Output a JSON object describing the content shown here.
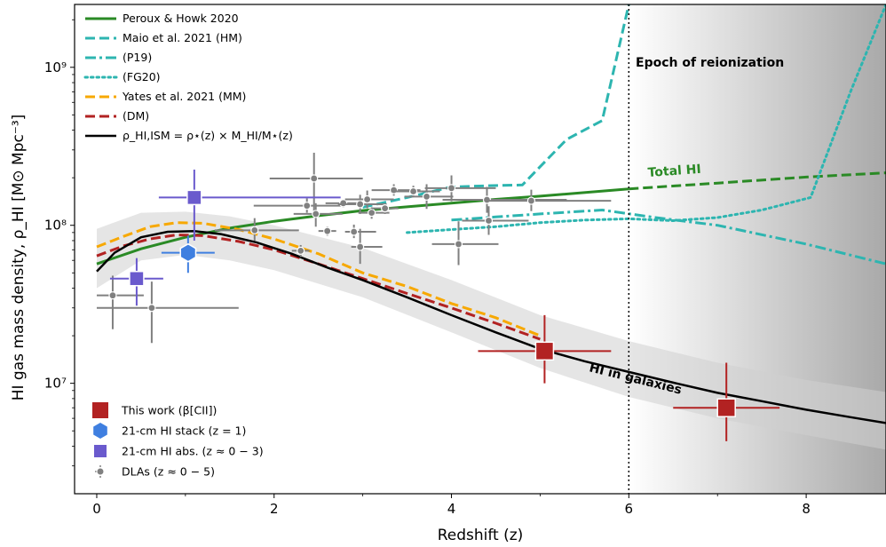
{
  "chart_data": {
    "type": "line",
    "xlabel": "Redshift (z)",
    "ylabel": "HI gas mass density, ρ_HI [M⊙ Mpc⁻³]",
    "xlim": [
      -0.25,
      8.9
    ],
    "ylim": [
      2000000,
      2500000000
    ],
    "yscale": "log",
    "grid": false,
    "legend_position": "top-left",
    "x_ticks": [
      0,
      2,
      4,
      6,
      8
    ],
    "x_tick_labels": [
      "0",
      "2",
      "4",
      "6",
      "8"
    ],
    "y_ticks": [
      10000000,
      100000000,
      1000000000
    ],
    "y_tick_labels": [
      "10⁷",
      "10⁸",
      "10⁹"
    ],
    "annotations": {
      "reionization": "Epoch of reionization",
      "total_hi": "Total HI",
      "hi_in_galaxies": "HI in galaxies"
    },
    "reionization_z": 6,
    "band": {
      "name": "ρ_HI,ISM uncertainty",
      "x": [
        0,
        0.5,
        1,
        1.5,
        2,
        3,
        4,
        5,
        6,
        7,
        8,
        8.9
      ],
      "upper": [
        95000000,
        120000000,
        122000000,
        114000000,
        100000000,
        72000000,
        45000000,
        27000000,
        18500000,
        13500000,
        10500000,
        8800000
      ],
      "lower": [
        40000000,
        60000000,
        65000000,
        60000000,
        52000000,
        35000000,
        21000000,
        12500000,
        8200000,
        6000000,
        4700000,
        3800000
      ]
    },
    "series": [
      {
        "name": "Peroux & Howk 2020",
        "color": "#2a8a25",
        "style": "solid",
        "x": [
          0,
          0.5,
          1,
          1.5,
          2,
          2.5,
          3,
          3.5,
          4,
          4.5,
          5,
          6
        ],
        "values": [
          57000000,
          71000000,
          84000000,
          96000000,
          106000000,
          115000000,
          124000000,
          131000000,
          138000000,
          146000000,
          153000000,
          170000000
        ]
      },
      {
        "name": "Peroux & Howk 2020 (extrapolation)",
        "color": "#2a8a25",
        "style": "dashed",
        "x": [
          6,
          7,
          8,
          8.9
        ],
        "values": [
          170000000,
          185000000,
          202000000,
          215000000
        ]
      },
      {
        "name": "Maio et al. 2021 (HM)",
        "color": "#2db5b0",
        "style": "dashed",
        "x": [
          3.0,
          3.5,
          4.0,
          4.4,
          4.8,
          5.3,
          5.7,
          6.0
        ],
        "values": [
          130000000,
          150000000,
          175000000,
          178000000,
          180000000,
          350000000,
          460000000,
          2500000000
        ]
      },
      {
        "name": "(P19)",
        "color": "#2db5b0",
        "style": "dashdot",
        "x": [
          4.0,
          4.5,
          5.0,
          5.7,
          6.3,
          7.0,
          8.0,
          8.9
        ],
        "values": [
          108000000,
          113000000,
          118000000,
          125000000,
          112000000,
          100000000,
          76000000,
          57000000
        ]
      },
      {
        "name": "(FG20)",
        "color": "#2db5b0",
        "style": "dotted",
        "x": [
          3.5,
          4.0,
          4.5,
          5.0,
          5.5,
          6.0,
          6.5,
          7.0,
          7.5,
          8.05,
          8.5,
          8.9
        ],
        "values": [
          90000000,
          94000000,
          98000000,
          104000000,
          108000000,
          110000000,
          107000000,
          112000000,
          125000000,
          150000000,
          700000000,
          2500000000
        ]
      },
      {
        "name": "Yates et al. 2021 (MM)",
        "color": "#f7a800",
        "style": "dashed",
        "x": [
          0,
          0.3,
          0.6,
          0.9,
          1.2,
          1.6,
          2,
          2.5,
          3,
          3.5,
          4,
          4.5,
          5.0
        ],
        "values": [
          73000000,
          85000000,
          98000000,
          104000000,
          103000000,
          94000000,
          82000000,
          66000000,
          50000000,
          41000000,
          32000000,
          26000000,
          20000000
        ]
      },
      {
        "name": "(DM)",
        "color": "#b22222",
        "style": "dashed",
        "x": [
          0,
          0.3,
          0.6,
          0.9,
          1.2,
          1.6,
          2,
          2.5,
          3,
          3.5,
          4,
          4.5,
          5.0
        ],
        "values": [
          64000000,
          74000000,
          82000000,
          87000000,
          86000000,
          79000000,
          70000000,
          57000000,
          46000000,
          37000000,
          30000000,
          24000000,
          19000000
        ]
      },
      {
        "name": "ρ_HI,ISM = ρ⋆(z) × M_HI/M⋆(z)",
        "color": "#000000",
        "style": "solid",
        "x": [
          0,
          0.2,
          0.5,
          0.8,
          1.1,
          1.4,
          1.8,
          2.2,
          2.6,
          3,
          3.5,
          4,
          4.5,
          5,
          5.5,
          6,
          6.5,
          7,
          7.5,
          8,
          8.5,
          8.9
        ],
        "values": [
          51000000,
          67000000,
          84000000,
          91000000,
          92000000,
          88000000,
          78000000,
          66000000,
          54000000,
          45000000,
          35000000,
          27000000,
          21000000,
          16500000,
          13800000,
          11800000,
          10100000,
          8700000,
          7700000,
          6800000,
          6100000,
          5600000
        ]
      }
    ],
    "points": {
      "this_work": {
        "name": "This work (β[CII])",
        "color": "#b22222",
        "data": [
          {
            "x": 5.05,
            "y": 16000000,
            "xerr": [
              0.75,
              0.75
            ],
            "yerr": [
              6000000,
              11000000
            ]
          },
          {
            "x": 7.1,
            "y": 7000000,
            "xerr": [
              0.6,
              0.6
            ],
            "yerr": [
              2700000,
              6500000
            ]
          }
        ]
      },
      "stack": {
        "name": "21-cm HI stack (z = 1)",
        "color": "#3f7fe0",
        "data": [
          {
            "x": 1.03,
            "y": 67000000,
            "xerr": [
              0.3,
              0.3
            ],
            "yerr": [
              17000000,
              19000000
            ]
          }
        ]
      },
      "abs": {
        "name": "21-cm HI abs. (z ≈ 0 − 3)",
        "color": "#6a5acd",
        "data": [
          {
            "x": 0.45,
            "y": 46000000,
            "xerr": [
              0.3,
              0.3
            ],
            "yerr": [
              15000000,
              16000000
            ]
          },
          {
            "x": 1.1,
            "y": 150000000,
            "xerr": [
              0.4,
              1.65
            ],
            "yerr": [
              70000000,
              75000000
            ]
          }
        ]
      },
      "dla": {
        "name": "DLAs (z ≈ 0 − 5)",
        "color": "#808080",
        "data": [
          {
            "x": 0.18,
            "y": 36000000,
            "xerr": [
              0.18,
              0.35
            ],
            "yerr": [
              14000000,
              12000000
            ]
          },
          {
            "x": 0.62,
            "y": 30000000,
            "xerr": [
              0.62,
              0.98
            ],
            "yerr": [
              12000000,
              14000000
            ]
          },
          {
            "x": 1.78,
            "y": 93000000,
            "xerr": [
              0.45,
              0.5
            ],
            "yerr": [
              13000000,
              18000000
            ]
          },
          {
            "x": 2.3,
            "y": 69000000,
            "xerr": [
              0.1,
              0.1
            ],
            "yerr": [
              6000000,
              6000000
            ]
          },
          {
            "x": 2.37,
            "y": 133000000,
            "xerr": [
              0.6,
              0.4
            ],
            "yerr": [
              13000000,
              15000000
            ]
          },
          {
            "x": 2.45,
            "y": 198000000,
            "xerr": [
              0.5,
              0.55
            ],
            "yerr": [
              80000000,
              90000000
            ]
          },
          {
            "x": 2.47,
            "y": 118000000,
            "xerr": [
              0.25,
              0.3
            ],
            "yerr": [
              20000000,
              20000000
            ]
          },
          {
            "x": 2.6,
            "y": 92000000,
            "xerr": [
              0.1,
              0.1
            ],
            "yerr": [
              6000000,
              6000000
            ]
          },
          {
            "x": 2.78,
            "y": 138000000,
            "xerr": [
              0.2,
              0.2
            ],
            "yerr": [
              8000000,
              8000000
            ]
          },
          {
            "x": 2.9,
            "y": 91000000,
            "xerr": [
              0.1,
              0.25
            ],
            "yerr": [
              8000000,
              10000000
            ]
          },
          {
            "x": 2.97,
            "y": 136000000,
            "xerr": [
              0.25,
              0.3
            ],
            "yerr": [
              18000000,
              20000000
            ]
          },
          {
            "x": 2.97,
            "y": 73000000,
            "xerr": [
              0.1,
              0.25
            ],
            "yerr": [
              16000000,
              22000000
            ]
          },
          {
            "x": 3.05,
            "y": 146000000,
            "xerr": [
              0.25,
              0.3
            ],
            "yerr": [
              18000000,
              20000000
            ]
          },
          {
            "x": 3.1,
            "y": 120000000,
            "xerr": [
              0.15,
              0.2
            ],
            "yerr": [
              10000000,
              10000000
            ]
          },
          {
            "x": 3.25,
            "y": 128000000,
            "xerr": [
              0.15,
              0.15
            ],
            "yerr": [
              10000000,
              10000000
            ]
          },
          {
            "x": 3.35,
            "y": 167000000,
            "xerr": [
              0.25,
              0.3
            ],
            "yerr": [
              13000000,
              15000000
            ]
          },
          {
            "x": 3.57,
            "y": 164000000,
            "xerr": [
              0.25,
              0.3
            ],
            "yerr": [
              12000000,
              14000000
            ]
          },
          {
            "x": 3.72,
            "y": 152000000,
            "xerr": [
              0.25,
              0.3
            ],
            "yerr": [
              25000000,
              30000000
            ]
          },
          {
            "x": 4.0,
            "y": 172000000,
            "xerr": [
              0.3,
              0.5
            ],
            "yerr": [
              30000000,
              35000000
            ]
          },
          {
            "x": 4.08,
            "y": 76000000,
            "xerr": [
              0.3,
              0.45
            ],
            "yerr": [
              20000000,
              30000000
            ]
          },
          {
            "x": 4.4,
            "y": 145000000,
            "xerr": [
              0.5,
              0.9
            ],
            "yerr": [
              25000000,
              30000000
            ]
          },
          {
            "x": 4.42,
            "y": 107000000,
            "xerr": [
              0.3,
              0.45
            ],
            "yerr": [
              20000000,
              25000000
            ]
          },
          {
            "x": 4.9,
            "y": 143000000,
            "xerr": [
              0.5,
              0.9
            ],
            "yerr": [
              20000000,
              25000000
            ]
          }
        ]
      }
    },
    "legend_lines": [
      {
        "label": "Peroux & Howk 2020",
        "color": "#2a8a25",
        "style": "solid"
      },
      {
        "label": "Maio et al. 2021 (HM)",
        "color": "#2db5b0",
        "style": "dashed"
      },
      {
        "label": "(P19)",
        "color": "#2db5b0",
        "style": "dashdot"
      },
      {
        "label": "(FG20)",
        "color": "#2db5b0",
        "style": "dotted"
      },
      {
        "label": "Yates et al. 2021 (MM)",
        "color": "#f7a800",
        "style": "dashed"
      },
      {
        "label": "(DM)",
        "color": "#b22222",
        "style": "dashed"
      },
      {
        "label": "ρ_HI,ISM = ρ⋆(z) × M_HI/M⋆(z)",
        "color": "#000000",
        "style": "solid"
      }
    ],
    "legend_points": [
      {
        "label": "This work (β[CII])",
        "color": "#b22222",
        "marker": "square"
      },
      {
        "label": "21-cm HI stack (z = 1)",
        "color": "#3f7fe0",
        "marker": "hexagon"
      },
      {
        "label": "21-cm HI abs. (z ≈ 0 − 3)",
        "color": "#6a5acd",
        "marker": "square"
      },
      {
        "label": "DLAs (z ≈ 0 − 5)",
        "color": "#808080",
        "marker": "circle"
      }
    ]
  }
}
